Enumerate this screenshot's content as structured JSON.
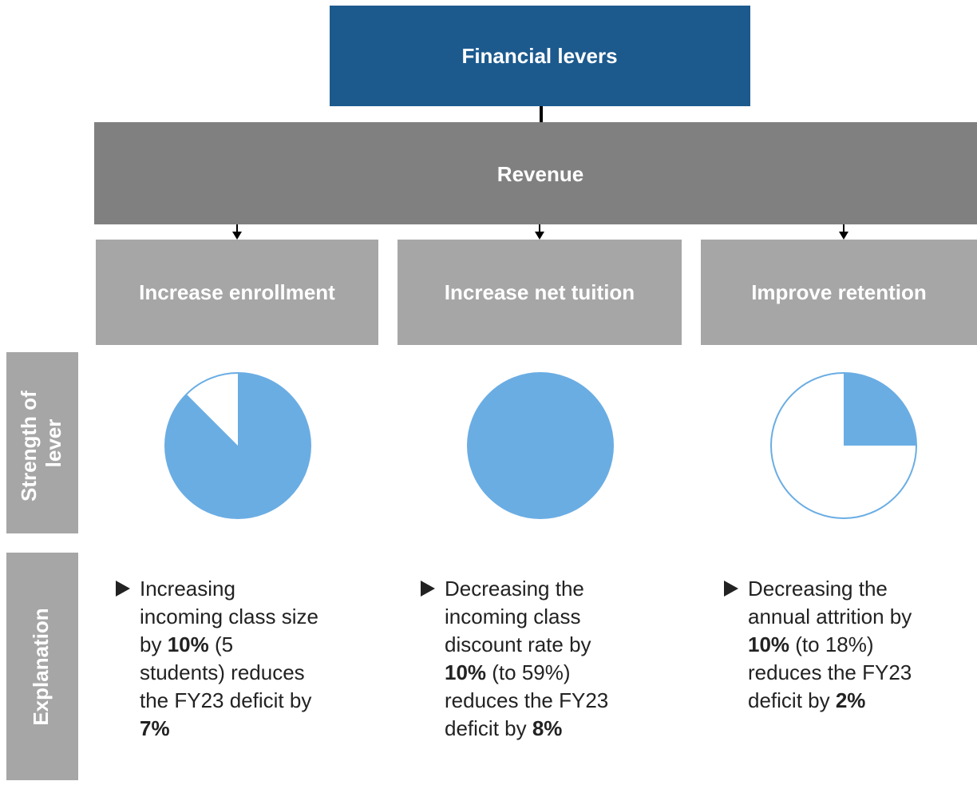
{
  "header": {
    "title": "Financial levers"
  },
  "category": {
    "label": "Revenue"
  },
  "row_labels": {
    "strength": [
      "Strength of",
      "lever"
    ],
    "explanation": "Explanation"
  },
  "levers": [
    {
      "label": "Increase enrollment",
      "strength": 87.5,
      "explanation": [
        [
          {
            "text": "Increasing",
            "bold": false
          }
        ],
        [
          {
            "text": "incoming class size",
            "bold": false
          }
        ],
        [
          {
            "text": "by ",
            "bold": false
          },
          {
            "text": "10%",
            "bold": true
          },
          {
            "text": " (5",
            "bold": false
          }
        ],
        [
          {
            "text": "students) reduces",
            "bold": false
          }
        ],
        [
          {
            "text": "the FY23 deficit by",
            "bold": false
          }
        ],
        [
          {
            "text": "7%",
            "bold": true
          }
        ]
      ]
    },
    {
      "label": "Increase net tuition",
      "strength": 100,
      "explanation": [
        [
          {
            "text": "Decreasing the",
            "bold": false
          }
        ],
        [
          {
            "text": "incoming class",
            "bold": false
          }
        ],
        [
          {
            "text": "discount rate by",
            "bold": false
          }
        ],
        [
          {
            "text": "10%",
            "bold": true
          },
          {
            "text": " (to 59%)",
            "bold": false
          }
        ],
        [
          {
            "text": "reduces the FY23",
            "bold": false
          }
        ],
        [
          {
            "text": "deficit by ",
            "bold": false
          },
          {
            "text": "8%",
            "bold": true
          }
        ]
      ]
    },
    {
      "label": "Improve retention",
      "strength": 25,
      "explanation": [
        [
          {
            "text": "Decreasing the",
            "bold": false
          }
        ],
        [
          {
            "text": "annual attrition by",
            "bold": false
          }
        ],
        [
          {
            "text": "10%",
            "bold": true
          },
          {
            "text": " (to 18%)",
            "bold": false
          }
        ],
        [
          {
            "text": "reduces the FY23",
            "bold": false
          }
        ],
        [
          {
            "text": "deficit by ",
            "bold": false
          },
          {
            "text": "2%",
            "bold": true
          }
        ]
      ]
    }
  ]
}
